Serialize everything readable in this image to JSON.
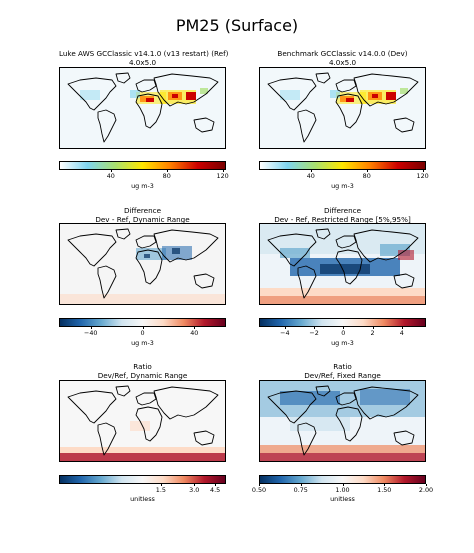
{
  "figure": {
    "title": "PM25 (Surface)"
  },
  "panels": [
    {
      "id": "ref",
      "title1": "Luke AWS GCClassic v14.1.0 (v13 restart) (Ref)",
      "title2": "4.0x5.0",
      "ticks": [
        "40",
        "80",
        "120"
      ],
      "unit": "ug m-3"
    },
    {
      "id": "dev",
      "title1": "Benchmark GCClassic v14.0.0 (Dev)",
      "title2": "4.0x5.0",
      "ticks": [
        "40",
        "80",
        "120"
      ],
      "unit": "ug m-3"
    },
    {
      "id": "diff-dyn",
      "title1": "Difference",
      "title2": "Dev - Ref, Dynamic Range",
      "ticks": [
        "−40",
        "0",
        "40"
      ],
      "unit": "ug m-3"
    },
    {
      "id": "diff-res",
      "title1": "Difference",
      "title2": "Dev - Ref, Restricted Range [5%,95%]",
      "ticks": [
        "−4",
        "−2",
        "0",
        "2",
        "4"
      ],
      "unit": "ug m-3"
    },
    {
      "id": "ratio-dyn",
      "title1": "Ratio",
      "title2": "Dev/Ref, Dynamic Range",
      "ticks": [
        "1.5",
        "3.0",
        "4.5"
      ],
      "unit": "unitless"
    },
    {
      "id": "ratio-fix",
      "title1": "Ratio",
      "title2": "Dev/Ref, Fixed Range",
      "ticks": [
        "0.50",
        "0.75",
        "1.00",
        "1.50",
        "2.00"
      ],
      "unit": "unitless"
    }
  ],
  "colors": {
    "conc_cmap": [
      "#ffffff",
      "#7fd4f0",
      "#a8e070",
      "#ffe600",
      "#ff8000",
      "#cc0000",
      "#7a0000"
    ],
    "diverging_cmap": [
      "#053061",
      "#2166ac",
      "#67a9cf",
      "#d1e5f0",
      "#f7f7f7",
      "#fddbc7",
      "#ef8a62",
      "#b2182b",
      "#67001f"
    ]
  }
}
